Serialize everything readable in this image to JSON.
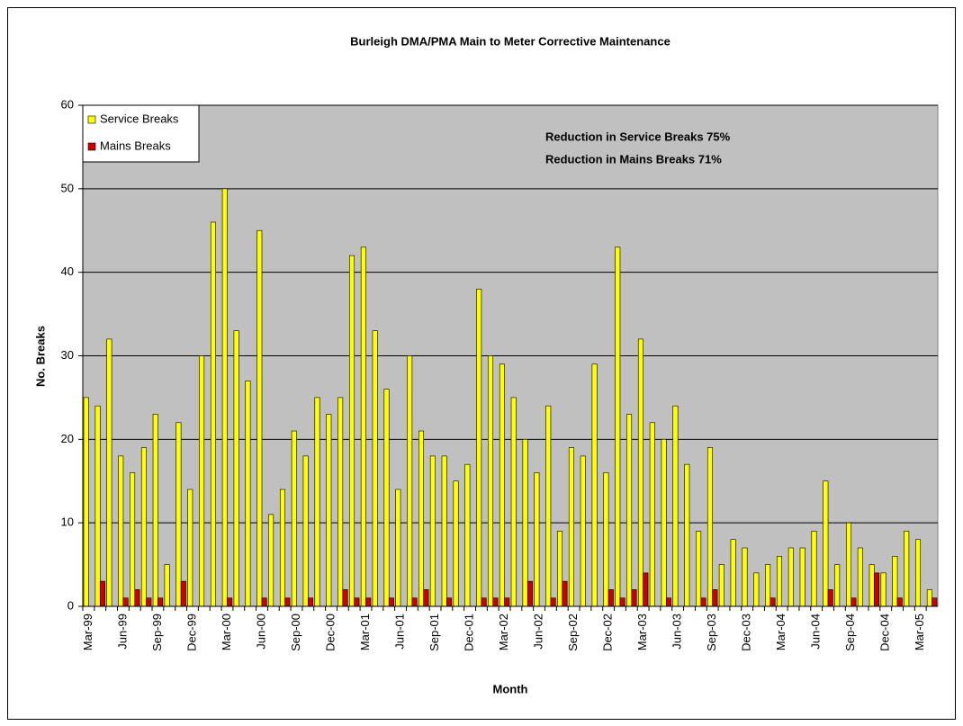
{
  "chart_data": {
    "type": "bar",
    "title": "Burleigh DMA/PMA Main to Meter Corrective Maintenance",
    "y_label": "No. Breaks",
    "x_label": "Month",
    "annotations": [
      "Reduction in Service Breaks 75%",
      "Reduction in Mains Breaks 71%"
    ],
    "categories": [
      "Mar-99",
      null,
      null,
      "Jun-99",
      null,
      null,
      "Sep-99",
      null,
      null,
      "Dec-99",
      null,
      null,
      "Mar-00",
      null,
      null,
      "Jun-00",
      null,
      null,
      "Sep-00",
      null,
      null,
      "Dec-00",
      null,
      null,
      "Mar-01",
      null,
      null,
      "Jun-01",
      null,
      null,
      "Sep-01",
      null,
      null,
      "Dec-01",
      null,
      null,
      "Mar-02",
      null,
      null,
      "Jun-02",
      null,
      null,
      "Sep-02",
      null,
      null,
      "Dec-02",
      null,
      null,
      "Mar-03",
      null,
      null,
      "Jun-03",
      null,
      null,
      "Sep-03",
      null,
      null,
      "Dec-03",
      null,
      null,
      "Mar-04",
      null,
      null,
      "Jun-04",
      null,
      null,
      "Sep-04",
      null,
      null,
      "Dec-04",
      null,
      null,
      "Mar-05",
      null
    ],
    "series": [
      {
        "name": "Service Breaks",
        "color": "#ffff00",
        "values": [
          25,
          24,
          32,
          18,
          16,
          19,
          23,
          5,
          22,
          14,
          30,
          46,
          50,
          33,
          27,
          45,
          11,
          14,
          21,
          18,
          25,
          23,
          25,
          42,
          43,
          33,
          26,
          14,
          30,
          21,
          18,
          18,
          15,
          17,
          38,
          30,
          29,
          25,
          20,
          16,
          24,
          9,
          19,
          18,
          29,
          16,
          43,
          23,
          32,
          22,
          20,
          24,
          17,
          9,
          19,
          5,
          8,
          7,
          4,
          5,
          6,
          7,
          7,
          9,
          15,
          5,
          10,
          7,
          5,
          4,
          6,
          9,
          8,
          2
        ]
      },
      {
        "name": "Mains Breaks",
        "color": "#cc0000",
        "values": [
          0,
          3,
          0,
          1,
          2,
          1,
          1,
          0,
          3,
          0,
          0,
          0,
          1,
          0,
          0,
          1,
          0,
          1,
          0,
          1,
          0,
          0,
          2,
          1,
          1,
          0,
          1,
          0,
          1,
          2,
          0,
          1,
          0,
          0,
          1,
          1,
          1,
          0,
          3,
          0,
          1,
          3,
          0,
          0,
          0,
          2,
          1,
          2,
          4,
          0,
          1,
          0,
          0,
          1,
          2,
          0,
          0,
          0,
          0,
          1,
          0,
          0,
          0,
          0,
          2,
          0,
          1,
          0,
          4,
          0,
          1,
          0,
          0,
          1
        ]
      }
    ],
    "ylim": [
      0,
      60
    ],
    "yticks": [
      0,
      10,
      20,
      30,
      40,
      50,
      60
    ],
    "grid": true,
    "legend": "top-left"
  }
}
